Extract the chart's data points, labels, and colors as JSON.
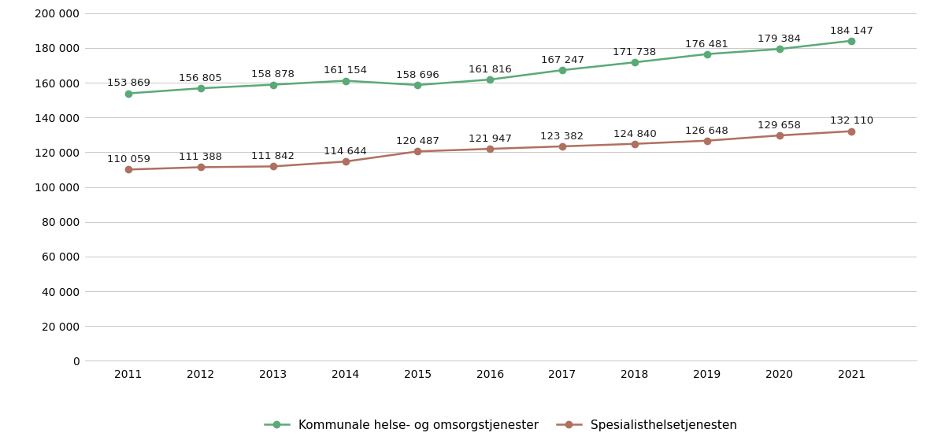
{
  "years": [
    2011,
    2012,
    2013,
    2014,
    2015,
    2016,
    2017,
    2018,
    2019,
    2020,
    2021
  ],
  "kommunale": [
    153869,
    156805,
    158878,
    161154,
    158696,
    161816,
    167247,
    171738,
    176481,
    179384,
    184147
  ],
  "spesialist": [
    110059,
    111388,
    111842,
    114644,
    120487,
    121947,
    123382,
    124840,
    126648,
    129658,
    132110
  ],
  "kommunale_labels": [
    "153 869",
    "156 805",
    "158 878",
    "161 154",
    "158 696",
    "161 816",
    "167 247",
    "171 738",
    "176 481",
    "179 384",
    "184 147"
  ],
  "spesialist_labels": [
    "110 059",
    "111 388",
    "111 842",
    "114 644",
    "120 487",
    "121 947",
    "123 382",
    "124 840",
    "126 648",
    "129 658",
    "132 110"
  ],
  "kommunale_color": "#5aaa78",
  "spesialist_color": "#b07060",
  "kommunale_label": "Kommunale helse- og omsorgstjenester",
  "spesialist_label": "Spesialisthelsetjenesten",
  "ylim": [
    0,
    200000
  ],
  "yticks": [
    0,
    20000,
    40000,
    60000,
    80000,
    100000,
    120000,
    140000,
    160000,
    180000,
    200000
  ],
  "background_color": "#ffffff",
  "grid_color": "#c8c8c8",
  "text_color": "#1a1a1a",
  "marker_size": 6,
  "line_width": 1.8,
  "label_fontsize": 9.5,
  "tick_fontsize": 10,
  "legend_fontsize": 11
}
